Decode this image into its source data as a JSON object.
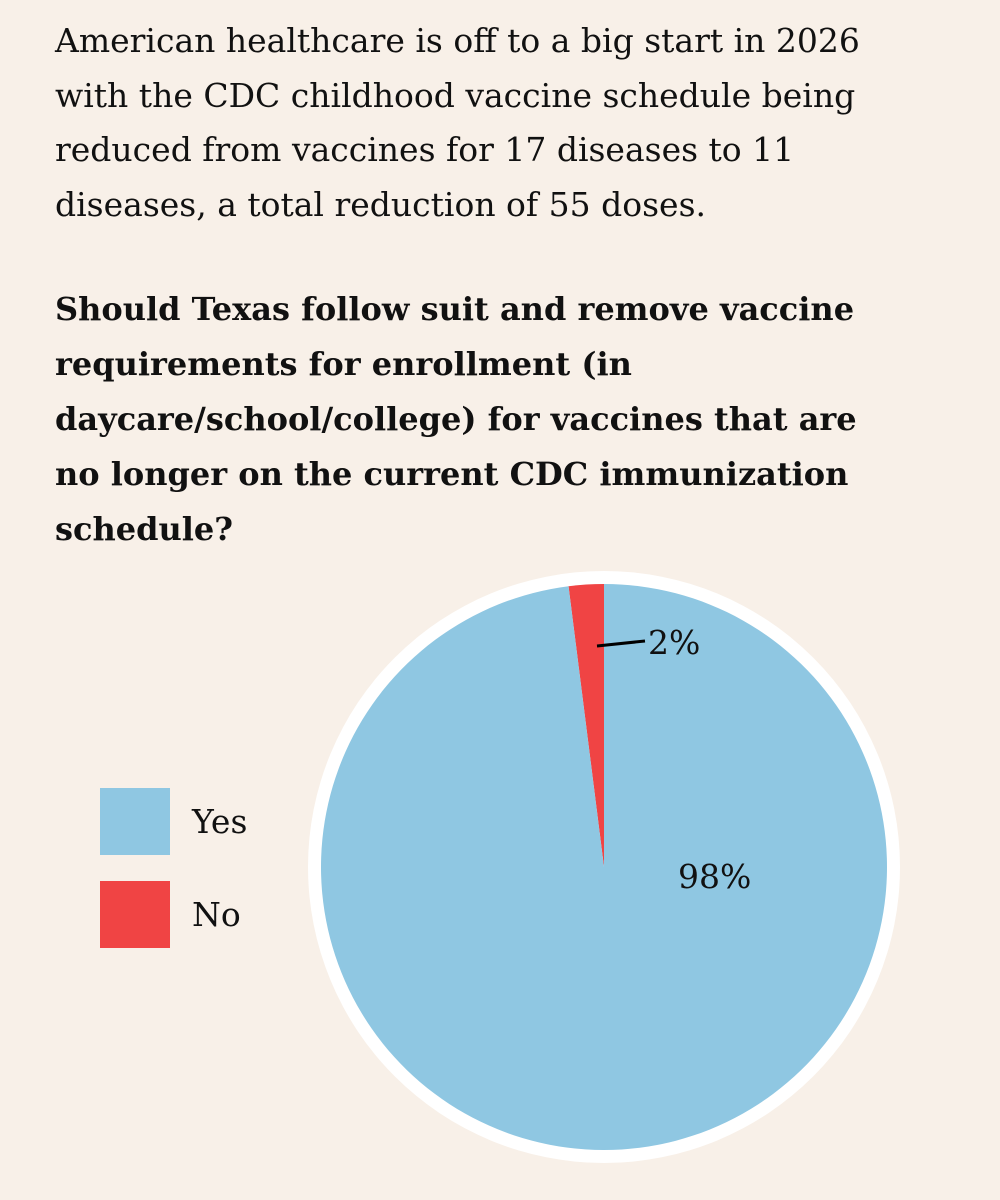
{
  "intro_lines": [
    "American healthcare is off to a big start in 2026",
    "with the CDC childhood vaccine schedule being",
    "reduced from vaccines for 17 diseases to 11",
    "diseases, a total reduction of 55 doses."
  ],
  "question_lines": [
    "Should Texas follow suit and remove vaccine",
    "requirements for enrollment (in",
    "daycare/school/college) for vaccines that are",
    "no longer on the current CDC immunization",
    "schedule?"
  ],
  "chart_data": {
    "type": "pie",
    "title": "Should Texas follow suit and remove vaccine requirements for enrollment (in daycare/school/college) for vaccines that are no longer on the current CDC immunization schedule?",
    "categories": [
      "Yes",
      "No"
    ],
    "values": [
      98,
      2
    ],
    "labels": [
      "98%",
      "2%"
    ],
    "colors": [
      "#8fc7e2",
      "#f04444"
    ],
    "legend_position": "left"
  }
}
